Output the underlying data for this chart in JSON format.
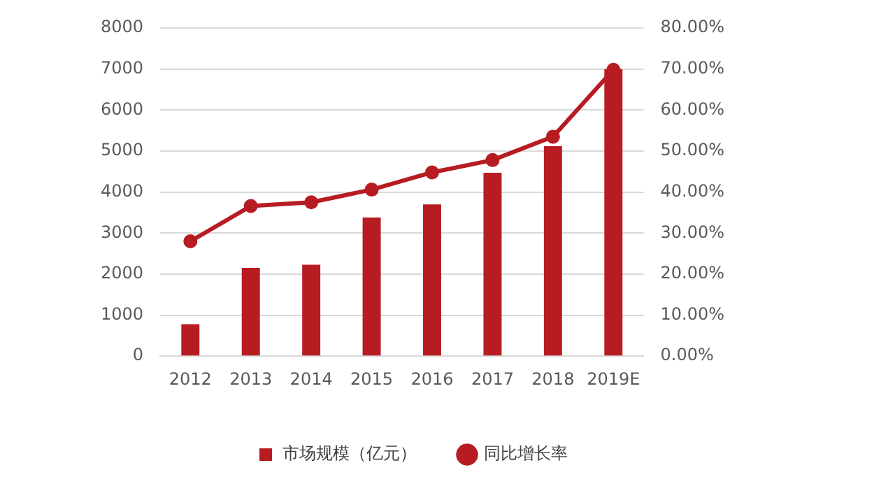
{
  "chart_data": {
    "type": "bar",
    "categories": [
      "2012",
      "2013",
      "2014",
      "2015",
      "2016",
      "2017",
      "2018",
      "2019E"
    ],
    "series": [
      {
        "name": "市场规模（亿元）",
        "color": "#b71c22",
        "values": [
          780,
          2150,
          2230,
          3380,
          3700,
          4470,
          5120,
          7000
        ]
      },
      {
        "name": "同比增长率",
        "type": "line",
        "axis": "y2",
        "color": "#b71c22",
        "marker": "circle",
        "values": [
          28.0,
          36.6,
          37.5,
          40.6,
          44.8,
          47.8,
          53.5,
          69.8
        ]
      }
    ],
    "ylim": [
      0,
      8000
    ],
    "yticks": [
      0,
      1000,
      2000,
      3000,
      4000,
      5000,
      6000,
      7000,
      8000
    ],
    "y2lim": [
      0,
      80
    ],
    "y2ticks": [
      {
        "value": 0,
        "label": "0.00%"
      },
      {
        "value": 10,
        "label": "10.00%"
      },
      {
        "value": 20,
        "label": "20.00%"
      },
      {
        "value": 30,
        "label": "30.00%"
      },
      {
        "value": 40,
        "label": "40.00%"
      },
      {
        "value": 50,
        "label": "50.00%"
      },
      {
        "value": 60,
        "label": "60.00%"
      },
      {
        "value": 70,
        "label": "70.00%"
      },
      {
        "value": 80,
        "label": "80.00%"
      }
    ],
    "grid": "y",
    "legend": "bottom"
  }
}
